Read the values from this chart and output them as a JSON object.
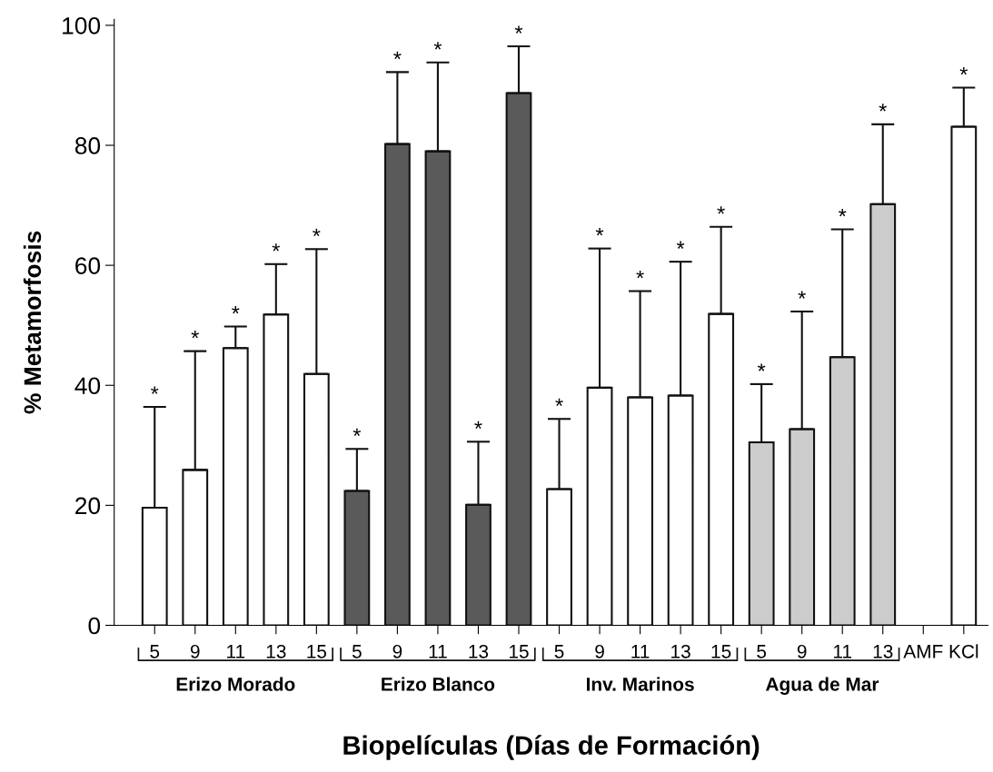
{
  "chart_data": {
    "type": "bar",
    "xlabel": "Biopelículas (Días de Formación)",
    "ylabel": "% Metamorfosis",
    "categories": [
      "5",
      "9",
      "11",
      "13",
      "15",
      "5",
      "9",
      "11",
      "13",
      "15",
      "5",
      "9",
      "11",
      "13",
      "15",
      "5",
      "9",
      "11",
      "13",
      "AMF",
      "KCl"
    ],
    "values": [
      19.6,
      25.9,
      46.2,
      51.8,
      41.9,
      22.4,
      80.2,
      79.0,
      20.1,
      88.7,
      22.7,
      39.6,
      38.0,
      38.3,
      51.9,
      30.5,
      32.7,
      44.7,
      70.2,
      null,
      83.1
    ],
    "errors": [
      [
        19.6,
        36.4
      ],
      [
        25.9,
        45.7
      ],
      [
        46.2,
        49.8
      ],
      [
        51.8,
        60.2
      ],
      [
        41.9,
        62.7
      ],
      [
        22.4,
        29.4
      ],
      [
        80.2,
        92.2
      ],
      [
        79.0,
        93.8
      ],
      [
        20.1,
        30.6
      ],
      [
        88.7,
        96.5
      ],
      [
        22.7,
        34.4
      ],
      [
        39.6,
        62.8
      ],
      [
        38.0,
        55.7
      ],
      [
        38.3,
        60.6
      ],
      [
        51.9,
        66.4
      ],
      [
        30.5,
        40.2
      ],
      [
        32.7,
        52.3
      ],
      [
        44.7,
        66.0
      ],
      [
        70.2,
        83.5
      ],
      null,
      [
        83.1,
        89.6
      ]
    ],
    "colors": [
      "#ffffff",
      "#ffffff",
      "#ffffff",
      "#ffffff",
      "#ffffff",
      "#5a5a5a",
      "#5a5a5a",
      "#5a5a5a",
      "#5a5a5a",
      "#5a5a5a",
      "#ffffff",
      "#ffffff",
      "#ffffff",
      "#ffffff",
      "#ffffff",
      "#cccccc",
      "#cccccc",
      "#cccccc",
      "#cccccc",
      "#ffffff",
      "#ffffff"
    ],
    "annotations": [
      "Erizo Morado",
      "Erizo Blanco",
      "Inv. Marinos",
      "Agua de Mar",
      "*",
      "*",
      "*",
      "*",
      "*",
      "*",
      "*",
      "*",
      "*",
      "*",
      "*",
      "*",
      "*",
      "*",
      "*",
      "*",
      "*",
      "*",
      "*",
      "*"
    ],
    "ylim": [
      0,
      101
    ],
    "yticks": [
      0,
      20,
      40,
      60,
      80,
      100
    ],
    "grid": false
  }
}
